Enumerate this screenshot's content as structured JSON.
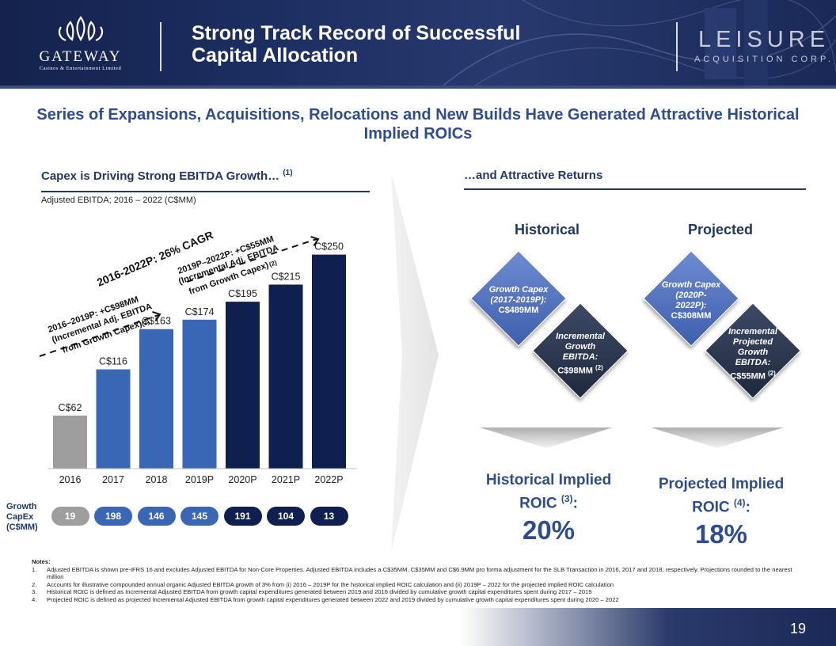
{
  "header": {
    "title_line1": "Strong Track Record of Successful",
    "title_line2": "Capital Allocation",
    "gateway_logo_name": "GATEWAY",
    "gateway_logo_sub": "Casinos & Entertainment Limited",
    "leisure_logo_name": "LEISURE",
    "leisure_logo_sub": "ACQUISITION CORP."
  },
  "headline": "Series of Expansions, Acquisitions, Relocations and New Builds Have Generated Attractive Historical Implied ROICs",
  "left_section": {
    "title": "Capex is Driving Strong EBITDA Growth…",
    "title_sup": "(1)",
    "subtitle": "Adjusted EBITDA; 2016 – 2022 (C$MM)"
  },
  "right_section": {
    "title": "…and Attractive Returns",
    "historical_head": "Historical",
    "projected_head": "Projected",
    "hist_capex_line1": "Growth Capex",
    "hist_capex_line2": "(2017-2019P):",
    "hist_capex_line3": "C$489MM",
    "hist_ebitda_line1": "Incremental",
    "hist_ebitda_line2": "Growth",
    "hist_ebitda_line3": "EBITDA:",
    "hist_ebitda_line4": "C$98MM",
    "hist_ebitda_sup": "(2)",
    "proj_capex_line1": "Growth Capex",
    "proj_capex_line2": "(2020P-",
    "proj_capex_line3": "2022P):",
    "proj_capex_line4": "C$308MM",
    "proj_ebitda_line1": "Incremental",
    "proj_ebitda_line2": "Projected",
    "proj_ebitda_line3": "Growth",
    "proj_ebitda_line4": "EBITDA:",
    "proj_ebitda_line5": "C$55MM",
    "proj_ebitda_sup": "(2)",
    "hist_roic_l1": "Historical Implied",
    "hist_roic_l2": "ROIC",
    "hist_roic_sup": "(3)",
    "hist_roic_colon": ":",
    "hist_roic_value": "20%",
    "proj_roic_l1": "Projected Implied",
    "proj_roic_l2": "ROIC",
    "proj_roic_sup": "(4)",
    "proj_roic_colon": ":",
    "proj_roic_value": "18%"
  },
  "chart_data": {
    "type": "bar",
    "categories": [
      "2016",
      "2017",
      "2018",
      "2019P",
      "2020P",
      "2021P",
      "2022P"
    ],
    "values": [
      62,
      116,
      163,
      174,
      195,
      215,
      250
    ],
    "data_labels": [
      "C$62",
      "C$116",
      "C$163",
      "C$174",
      "C$195",
      "C$215",
      "C$250"
    ],
    "bar_colors": [
      "#9e9e9e",
      "#3a67b5",
      "#3a67b5",
      "#3a67b5",
      "#0f1f4f",
      "#0f1f4f",
      "#0f1f4f"
    ],
    "ylim": [
      0,
      270
    ],
    "annotations": {
      "cagr": "2016-2022P: 26% CAGR",
      "hist_l1": "2016–2019P: +C$98MM",
      "hist_l2": "(Incremental  Adj. EBITDA",
      "hist_l3": "from Growth Capex)",
      "hist_sup": "(2)",
      "proj_l1": "2019P–2022P: +C$55MM",
      "proj_l2": "(Incremental  Adj. EBITDA",
      "proj_l3": "from Growth Capex)",
      "proj_sup": "(2)"
    }
  },
  "capex": {
    "label_l1": "Growth",
    "label_l2": "CapEx",
    "label_l3": "(C$MM)",
    "values": [
      "19",
      "198",
      "146",
      "145",
      "191",
      "104",
      "13"
    ],
    "colors": [
      "#9e9e9e",
      "#3a67b5",
      "#3a67b5",
      "#3a67b5",
      "#0f1f4f",
      "#0f1f4f",
      "#0f1f4f"
    ]
  },
  "notes": {
    "heading": "Notes:",
    "items": [
      {
        "num": "1.",
        "text": "Adjusted EBITDA is shown pre-IFRS 16 and excludes Adjusted EBITDA for Non-Core Properties. Adjusted EBITDA includes a C$35MM, C$35MM and C$6.9MM pro forma adjustment for the SLB Transaction in 2016, 2017 and 2018, respectively. Projections rounded to the nearest million"
      },
      {
        "num": "2.",
        "text": "Accounts for illustrative compounded annual organic Adjusted EBITDA growth of 3% from (i) 2016 – 2019P for the historical implied ROIC calculation and (ii) 2019P – 2022 for the projected implied ROIC calculation"
      },
      {
        "num": "3.",
        "text": "Historical ROIC is defined as Incremental Adjusted EBITDA from growth capital expenditures generated between 2019 and 2016 divided by cumulative growth capital expenditures spent during 2017 – 2019"
      },
      {
        "num": "4.",
        "text": "Projected ROIC is defined as projected Incremental Adjusted EBITDA from growth capital expenditures generated between 2022 and 2019 divided by cumulative growth capital expenditures spent during 2020 – 2022"
      }
    ]
  },
  "page_number": "19"
}
